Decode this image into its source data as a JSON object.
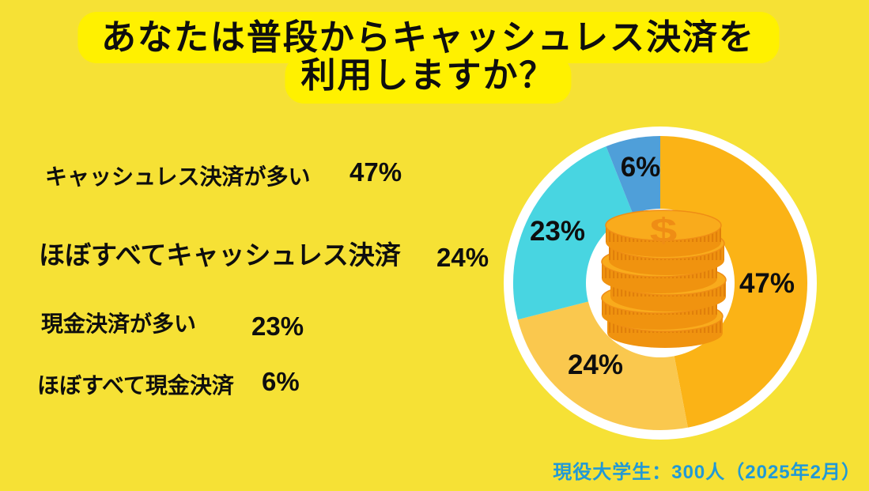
{
  "title": {
    "line1": "あなたは普段からキャッシュレス決済を",
    "line2": "利用しますか？"
  },
  "chart_data": {
    "type": "pie",
    "subtype": "donut",
    "title": "あなたは普段からキャッシュレス決済を利用しますか？",
    "start_angle_deg": 0,
    "direction": "clockwise",
    "legend_position": "left",
    "center_icon": "coin-stack-icon",
    "segments": [
      {
        "label": "キャッシュレス決済が多い",
        "value": 47,
        "pct_label": "47%",
        "color": "#FBB316"
      },
      {
        "label": "ほぼすべてキャッシュレス決済",
        "value": 24,
        "pct_label": "24%",
        "color": "#FAC84E"
      },
      {
        "label": "現金決済が多い",
        "value": 23,
        "pct_label": "23%",
        "color": "#48D5E1"
      },
      {
        "label": "ほぼすべて現金決済",
        "value": 6,
        "pct_label": "6%",
        "color": "#4F9FD9"
      }
    ],
    "source_note": "現役大学生：300人（2025年2月）"
  },
  "colors": {
    "background": "#F6E135",
    "title_highlight": "#FFF100",
    "text": "#0E0E0E",
    "footer_blue": "#2199D6",
    "donut_ring_white": "#FFFFFF",
    "coin_face": "#F9AB1C",
    "coin_rim": "#F0930F",
    "coin_detail": "#E07F0A"
  }
}
